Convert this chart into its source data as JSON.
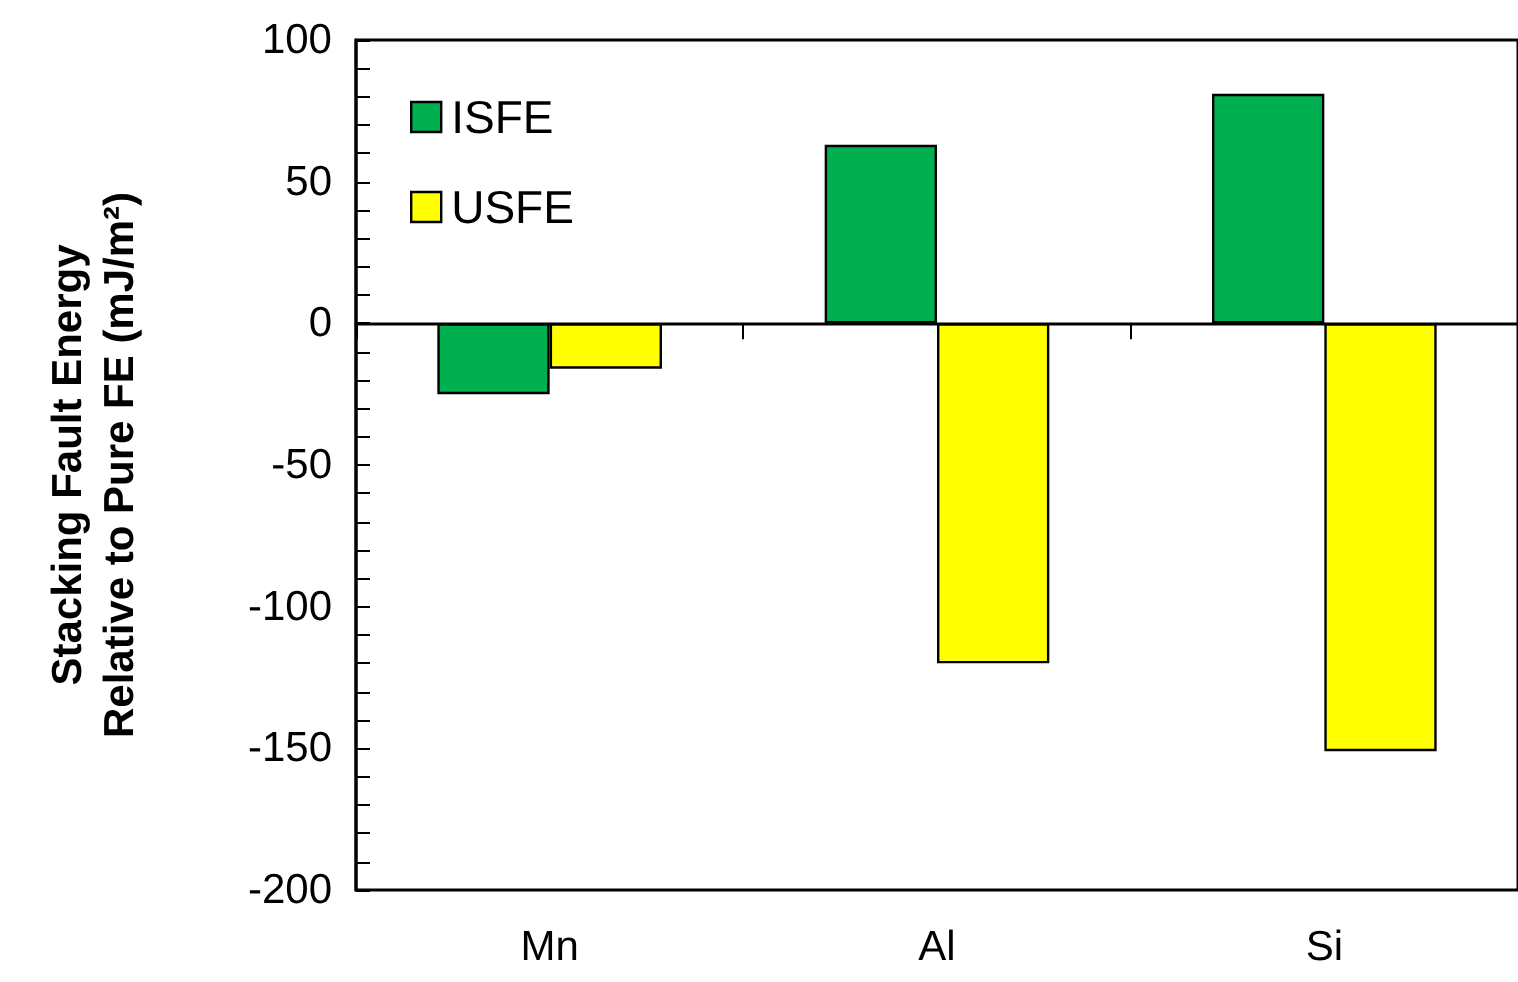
{
  "chart_data": {
    "type": "bar",
    "ylabel": "Stacking Fault Energy\nRelative to Pure FE (mJ/m²)",
    "categories": [
      "Mn",
      "Al",
      "Si"
    ],
    "series": [
      {
        "name": "ISFE",
        "color": "#00b050",
        "values": [
          -25,
          63,
          81
        ]
      },
      {
        "name": "USFE",
        "color": "#ffff00",
        "values": [
          -16,
          -120,
          -151
        ]
      }
    ],
    "ylim": [
      -200,
      100
    ],
    "yticks": [
      -200,
      {
        "value": -190,
        "label": null
      },
      {
        "value": -180,
        "label": null
      },
      {
        "value": -170,
        "label": null
      },
      {
        "value": -160,
        "label": null
      },
      -150,
      {
        "value": -140,
        "label": null
      },
      {
        "value": -130,
        "label": null
      },
      {
        "value": -120,
        "label": null
      },
      {
        "value": -110,
        "label": null
      },
      -100,
      {
        "value": -90,
        "label": null
      },
      {
        "value": -80,
        "label": null
      },
      {
        "value": -70,
        "label": null
      },
      {
        "value": -60,
        "label": null
      },
      -50,
      {
        "value": -40,
        "label": null
      },
      {
        "value": -30,
        "label": null
      },
      {
        "value": -20,
        "label": null
      },
      {
        "value": -10,
        "label": null
      },
      0,
      {
        "value": 10,
        "label": null
      },
      {
        "value": 20,
        "label": null
      },
      {
        "value": 30,
        "label": null
      },
      {
        "value": 40,
        "label": null
      },
      50,
      {
        "value": 60,
        "label": null
      },
      {
        "value": 70,
        "label": null
      },
      {
        "value": 80,
        "label": null
      },
      {
        "value": 90,
        "label": null
      },
      100
    ],
    "legend": "top left"
  }
}
